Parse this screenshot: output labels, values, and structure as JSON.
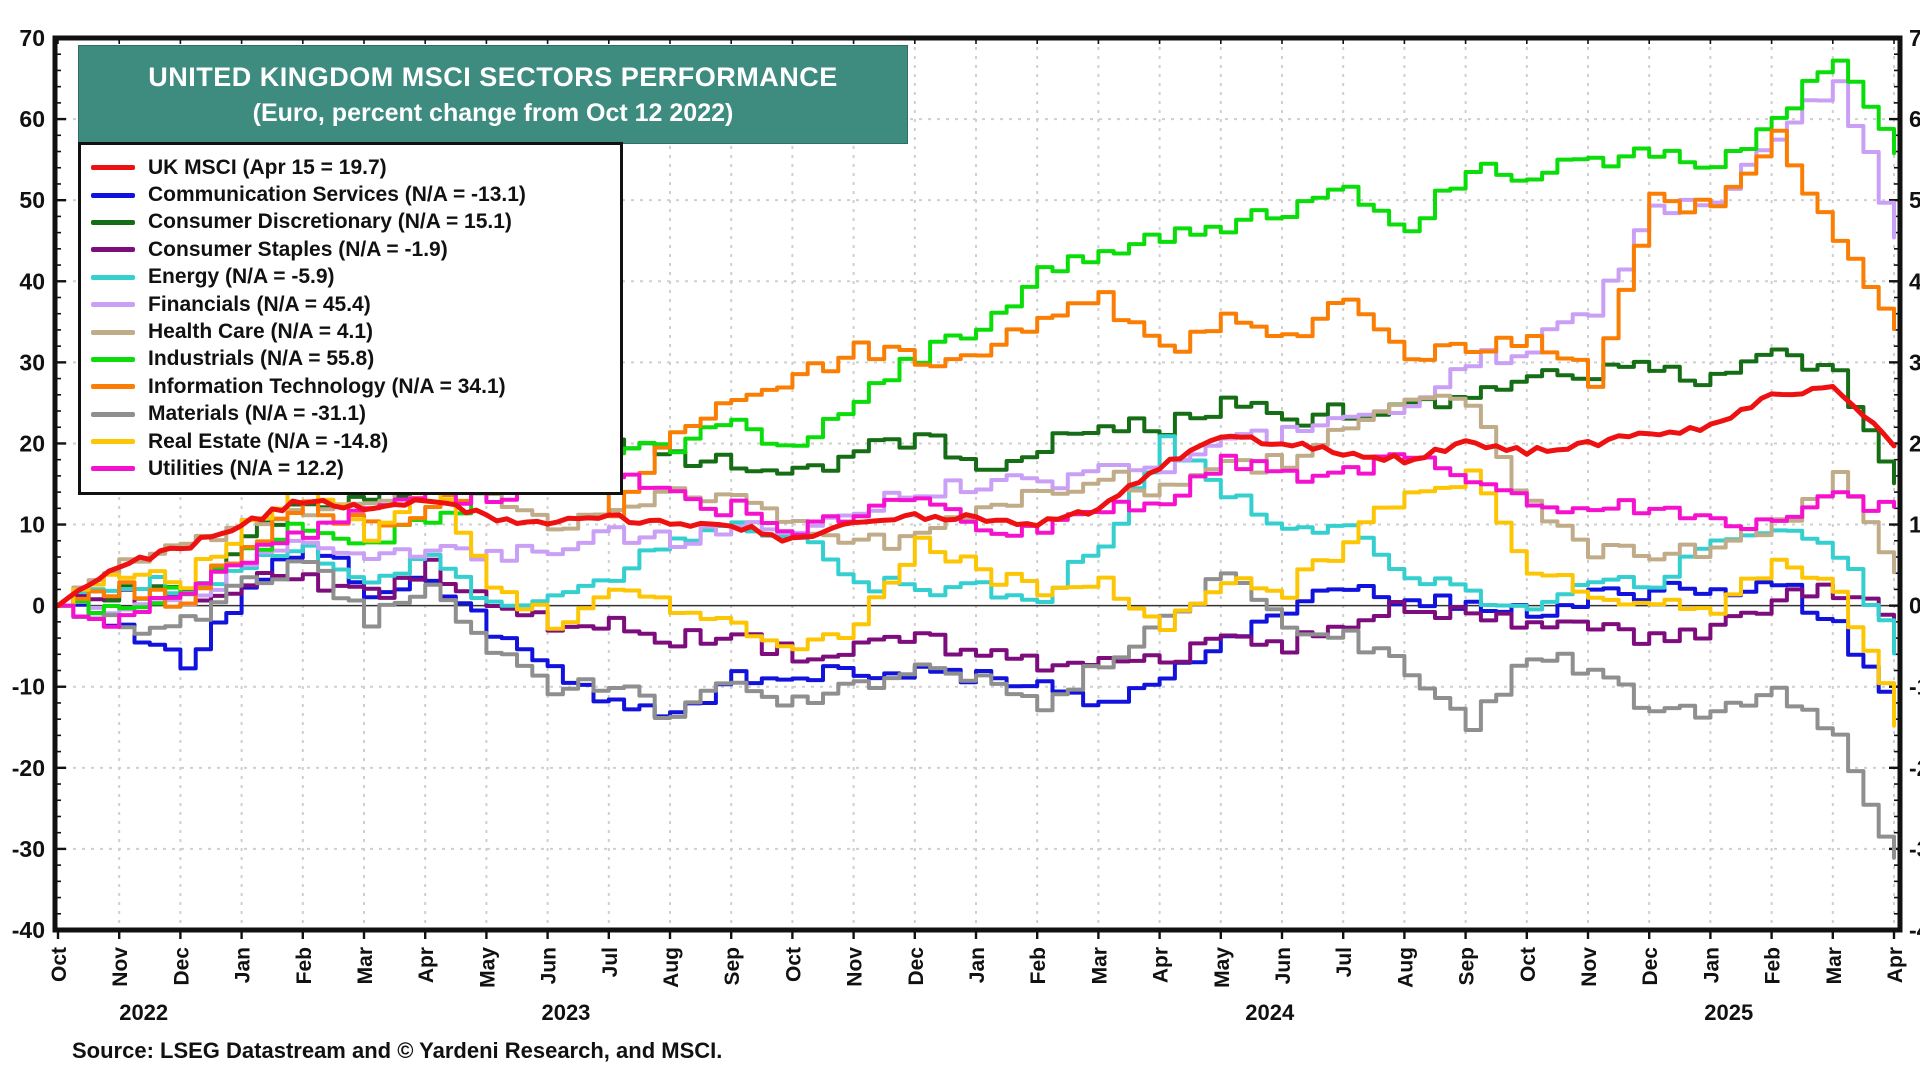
{
  "source": "Source: LSEG Datastream and © Yardeni Research, and MSCI.",
  "colors": {
    "title_background": "#3e8b80",
    "grid": "#cfcfcf",
    "axis": "#111111",
    "zero_line": "#333333"
  },
  "chart_data": {
    "type": "line",
    "title": "UNITED KINGDOM MSCI SECTORS PERFORMANCE",
    "subtitle": "(Euro, percent change from Oct 12 2022)",
    "baseline_note": "Oct 12 2022 = 0",
    "legend_position": "upper-left",
    "grid": "dotted vertical line per month, dotted horizontal line per 10 units, solid zero line",
    "ylim": [
      -40,
      70
    ],
    "ytick_step": 10,
    "ytick_minor_step": 2,
    "yticks": [
      70,
      60,
      50,
      40,
      30,
      20,
      10,
      0,
      -10,
      -20,
      -30,
      -40
    ],
    "x_categories": [
      "Oct",
      "Nov",
      "Dec",
      "Jan",
      "Feb",
      "Mar",
      "Apr",
      "May",
      "Jun",
      "Jul",
      "Aug",
      "Sep",
      "Oct",
      "Nov",
      "Dec",
      "Jan",
      "Feb",
      "Mar",
      "Apr",
      "May",
      "Jun",
      "Jul",
      "Aug",
      "Sep",
      "Oct",
      "Nov",
      "Dec",
      "Jan",
      "Feb",
      "Mar",
      "Apr"
    ],
    "year_labels": [
      {
        "text": "2022",
        "month_index": 1.4
      },
      {
        "text": "2023",
        "month_index": 8.3
      },
      {
        "text": "2024",
        "month_index": 19.8
      },
      {
        "text": "2025",
        "month_index": 27.3
      }
    ],
    "series": [
      {
        "name": "UK MSCI",
        "legend_label": "UK MSCI (Apr 15 = 19.7)",
        "last_value": 19.7,
        "color": "#ee1111",
        "values": [
          0,
          5,
          7,
          10,
          13,
          12,
          13,
          11,
          10,
          11,
          10,
          10,
          8,
          10,
          11,
          11,
          10,
          12,
          17,
          21,
          20,
          19,
          18,
          20,
          19,
          20,
          21,
          22,
          26,
          27,
          19.7
        ]
      },
      {
        "name": "Communication Services",
        "legend_label": "Communication Services (N/A = -13.1)",
        "last_value": -13.1,
        "color": "#1212dd",
        "values": [
          0,
          -2,
          -8,
          2,
          8,
          2,
          3,
          -3,
          -8,
          -12,
          -13,
          -9,
          -9,
          -8,
          -8,
          -9,
          -10,
          -12,
          -8,
          -4,
          0,
          2,
          1,
          0,
          -1,
          1,
          2,
          2,
          3,
          -3,
          -13.1
        ]
      },
      {
        "name": "Consumer Discretionary",
        "legend_label": "Consumer Discretionary (N/A = 15.1)",
        "last_value": 15.1,
        "color": "#156e15",
        "values": [
          0,
          2,
          1,
          8,
          13,
          13,
          15,
          14,
          18,
          20,
          18,
          18,
          16,
          19,
          21,
          17,
          20,
          22,
          22,
          25,
          23,
          24,
          24,
          26,
          28,
          29,
          29,
          28,
          31,
          29,
          15.1
        ]
      },
      {
        "name": "Consumer Staples",
        "legend_label": "Consumer Staples (N/A = -1.9)",
        "last_value": -1.9,
        "color": "#7d0d7d",
        "values": [
          0,
          1,
          1,
          3,
          3,
          1,
          5,
          0,
          -2,
          -2,
          -4,
          -4,
          -6,
          -5,
          -4,
          -6,
          -7,
          -6,
          -7,
          -4,
          -5,
          -2,
          0,
          -1,
          -3,
          -3,
          -4,
          -3,
          1,
          2,
          -1.9
        ]
      },
      {
        "name": "Energy",
        "legend_label": "Energy (N/A = -5.9)",
        "last_value": -5.9,
        "color": "#35cfcf",
        "values": [
          0,
          3,
          2,
          5,
          7,
          3,
          6,
          0,
          2,
          4,
          8,
          10,
          8,
          3,
          2,
          2,
          1,
          8,
          20,
          14,
          10,
          10,
          4,
          1,
          0,
          3,
          2,
          8,
          9,
          7,
          -5.9
        ]
      },
      {
        "name": "Financials",
        "legend_label": "Financials (N/A = 45.4)",
        "last_value": 45.4,
        "color": "#c9a0f5",
        "values": [
          0,
          -1,
          0,
          6,
          8,
          5,
          7,
          6,
          7,
          9,
          8,
          10,
          9,
          12,
          14,
          15,
          15,
          17,
          16,
          20,
          21,
          23,
          25,
          30,
          32,
          36,
          49,
          50,
          58,
          65,
          45.4
        ]
      },
      {
        "name": "Health Care",
        "legend_label": "Health Care (N/A = 4.1)",
        "last_value": 4.1,
        "color": "#c1ac89",
        "values": [
          0,
          5,
          8,
          10,
          12,
          13,
          16,
          14,
          10,
          12,
          14,
          13,
          10,
          8,
          8,
          12,
          14,
          16,
          14,
          17,
          18,
          22,
          26,
          25,
          12,
          7,
          6,
          7,
          10,
          16,
          4.1
        ]
      },
      {
        "name": "Industrials",
        "legend_label": "Industrials (N/A = 55.8)",
        "last_value": 55.8,
        "color": "#0bdd0b",
        "values": [
          0,
          0,
          2,
          7,
          10,
          8,
          10,
          14,
          17,
          18,
          20,
          22,
          20,
          26,
          31,
          35,
          41,
          44,
          45,
          47,
          49,
          51,
          47,
          54,
          53,
          55,
          56,
          54,
          60,
          68,
          55.8
        ]
      },
      {
        "name": "Information Technology",
        "legend_label": "Information Technology (N/A = 34.1)",
        "last_value": 34.1,
        "color": "#fb7e04",
        "values": [
          0,
          2,
          0,
          8,
          12,
          10,
          12,
          16,
          20,
          12,
          22,
          26,
          28,
          32,
          30,
          30,
          36,
          38,
          31,
          35,
          33,
          38,
          31,
          32,
          33,
          28,
          50,
          49,
          58,
          45,
          34.1
        ]
      },
      {
        "name": "Materials",
        "legend_label": "Materials (N/A = -31.1)",
        "last_value": -31.1,
        "color": "#8f8f8f",
        "values": [
          0,
          -3,
          -2,
          3,
          5,
          -2,
          3,
          -6,
          -10,
          -10,
          -14,
          -9,
          -12,
          -10,
          -7,
          -9,
          -12,
          -7,
          -2,
          4,
          -2,
          -4,
          -8,
          -15,
          -6,
          -8,
          -13,
          -13,
          -10,
          -17,
          -31.1
        ]
      },
      {
        "name": "Real Estate",
        "legend_label": "Real Estate (N/A = -14.8)",
        "last_value": -14.8,
        "color": "#fcc605",
        "values": [
          0,
          4,
          3,
          10,
          16,
          8,
          15,
          3,
          -2,
          2,
          0,
          -2,
          -6,
          -2,
          8,
          4,
          2,
          3,
          -2,
          3,
          2,
          8,
          14,
          16,
          5,
          2,
          0,
          -1,
          6,
          2,
          -14.8
        ]
      },
      {
        "name": "Utilities",
        "legend_label": "Utilities (N/A = 12.2)",
        "last_value": 12.2,
        "color": "#f512cf",
        "values": [
          0,
          -2,
          2,
          6,
          9,
          12,
          14,
          13,
          15,
          16,
          13,
          12,
          9,
          12,
          14,
          10,
          9,
          12,
          13,
          18,
          16,
          17,
          18,
          15,
          13,
          12,
          12,
          10,
          11,
          13,
          12.2
        ]
      }
    ]
  }
}
